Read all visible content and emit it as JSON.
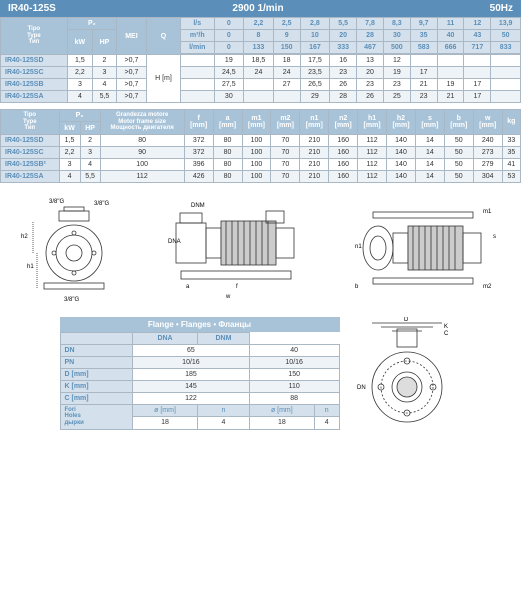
{
  "header": {
    "model": "IR40-125S",
    "rpm": "2900 1/min",
    "hz": "50Hz"
  },
  "t1": {
    "cols_type": "Tipo<br>Type<br>Тип",
    "p2": "P₂",
    "kw": "kW",
    "hp": "HP",
    "mei": "MEI",
    "q": "Q",
    "flow_units": [
      "l/s",
      "m³/h",
      "l/min"
    ],
    "flow_ls": [
      "0",
      "2,2",
      "2,5",
      "2,8",
      "5,5",
      "7,8",
      "8,3",
      "9,7",
      "11",
      "12",
      "13,9"
    ],
    "flow_m3h": [
      "0",
      "8",
      "9",
      "10",
      "20",
      "28",
      "30",
      "35",
      "40",
      "43",
      "50"
    ],
    "flow_lmin": [
      "0",
      "133",
      "150",
      "167",
      "333",
      "467",
      "500",
      "583",
      "666",
      "717",
      "833"
    ],
    "h_label": "H [m]",
    "rows": [
      {
        "m": "IR40-125SD",
        "kw": "1,5",
        "hp": "2",
        "mei": ">0,7",
        "v": [
          "19",
          "18,5",
          "18",
          "17,5",
          "16",
          "13",
          "12",
          "",
          "",
          "",
          ""
        ]
      },
      {
        "m": "IR40-125SC",
        "kw": "2,2",
        "hp": "3",
        "mei": ">0,7",
        "v": [
          "24,5",
          "24",
          "24",
          "23,5",
          "23",
          "20",
          "19",
          "17",
          "",
          "",
          ""
        ]
      },
      {
        "m": "IR40-125SB",
        "kw": "3",
        "hp": "4",
        "mei": ">0,7",
        "v": [
          "27,5",
          "",
          "27",
          "26,5",
          "26",
          "23",
          "23",
          "21",
          "19",
          "17",
          ""
        ]
      },
      {
        "m": "IR40-125SA",
        "kw": "4",
        "hp": "5,5",
        "mei": ">0,7",
        "v": [
          "30",
          "",
          "",
          "29",
          "28",
          "26",
          "25",
          "23",
          "21",
          "17",
          ""
        ]
      }
    ]
  },
  "t2": {
    "motor": "Grandezza motore<br>Motor frame size<br>Мощность двигателя",
    "cols": [
      "f<br>[mm]",
      "a<br>[mm]",
      "m1<br>[mm]",
      "m2<br>[mm]",
      "n1<br>[mm]",
      "n2<br>[mm]",
      "h1<br>[mm]",
      "h2<br>[mm]",
      "s<br>[mm]",
      "b<br>[mm]",
      "w<br>[mm]",
      "kg"
    ],
    "rows": [
      {
        "m": "IR40-125SD",
        "kw": "1,5",
        "hp": "2",
        "fr": "80",
        "v": [
          "372",
          "80",
          "100",
          "70",
          "210",
          "160",
          "112",
          "140",
          "14",
          "50",
          "240",
          "33"
        ]
      },
      {
        "m": "IR40-125SC",
        "kw": "2,2",
        "hp": "3",
        "fr": "90",
        "v": [
          "372",
          "80",
          "100",
          "70",
          "210",
          "160",
          "112",
          "140",
          "14",
          "50",
          "273",
          "35"
        ]
      },
      {
        "m": "IR40-125SB²",
        "kw": "3",
        "hp": "4",
        "fr": "100",
        "v": [
          "396",
          "80",
          "100",
          "70",
          "210",
          "160",
          "112",
          "140",
          "14",
          "50",
          "279",
          "41"
        ]
      },
      {
        "m": "IR40-125SA",
        "kw": "4",
        "hp": "5,5",
        "fr": "112",
        "v": [
          "426",
          "80",
          "100",
          "70",
          "210",
          "160",
          "112",
          "140",
          "14",
          "50",
          "304",
          "53"
        ]
      }
    ]
  },
  "diag_labels": {
    "g": "3/8\"G",
    "h1": "h1",
    "h2": "h2",
    "dnm": "DNM",
    "dna": "DNA",
    "a": "a",
    "f": "f",
    "w": "w",
    "m1": "m1",
    "m2": "m2",
    "n1": "n1",
    "s": "s",
    "b": "b"
  },
  "flange": {
    "title": "Flange • Flanges • Фланцы",
    "cols": [
      "",
      "DNA",
      "DNM"
    ],
    "rows": [
      [
        "DN",
        "65",
        "40"
      ],
      [
        "PN",
        "10/16",
        "10/16"
      ],
      [
        "D [mm]",
        "185",
        "150"
      ],
      [
        "K [mm]",
        "145",
        "110"
      ],
      [
        "C [mm]",
        "122",
        "88"
      ]
    ],
    "holes_label": "Fori<br>Holes<br>дырки",
    "holes_cols": [
      "ø [mm]",
      "n",
      "ø [mm]",
      "n"
    ],
    "holes": [
      "18",
      "4",
      "18",
      "4"
    ],
    "dlabels": {
      "D": "D",
      "K": "K",
      "C": "C",
      "DN": "DN"
    }
  }
}
